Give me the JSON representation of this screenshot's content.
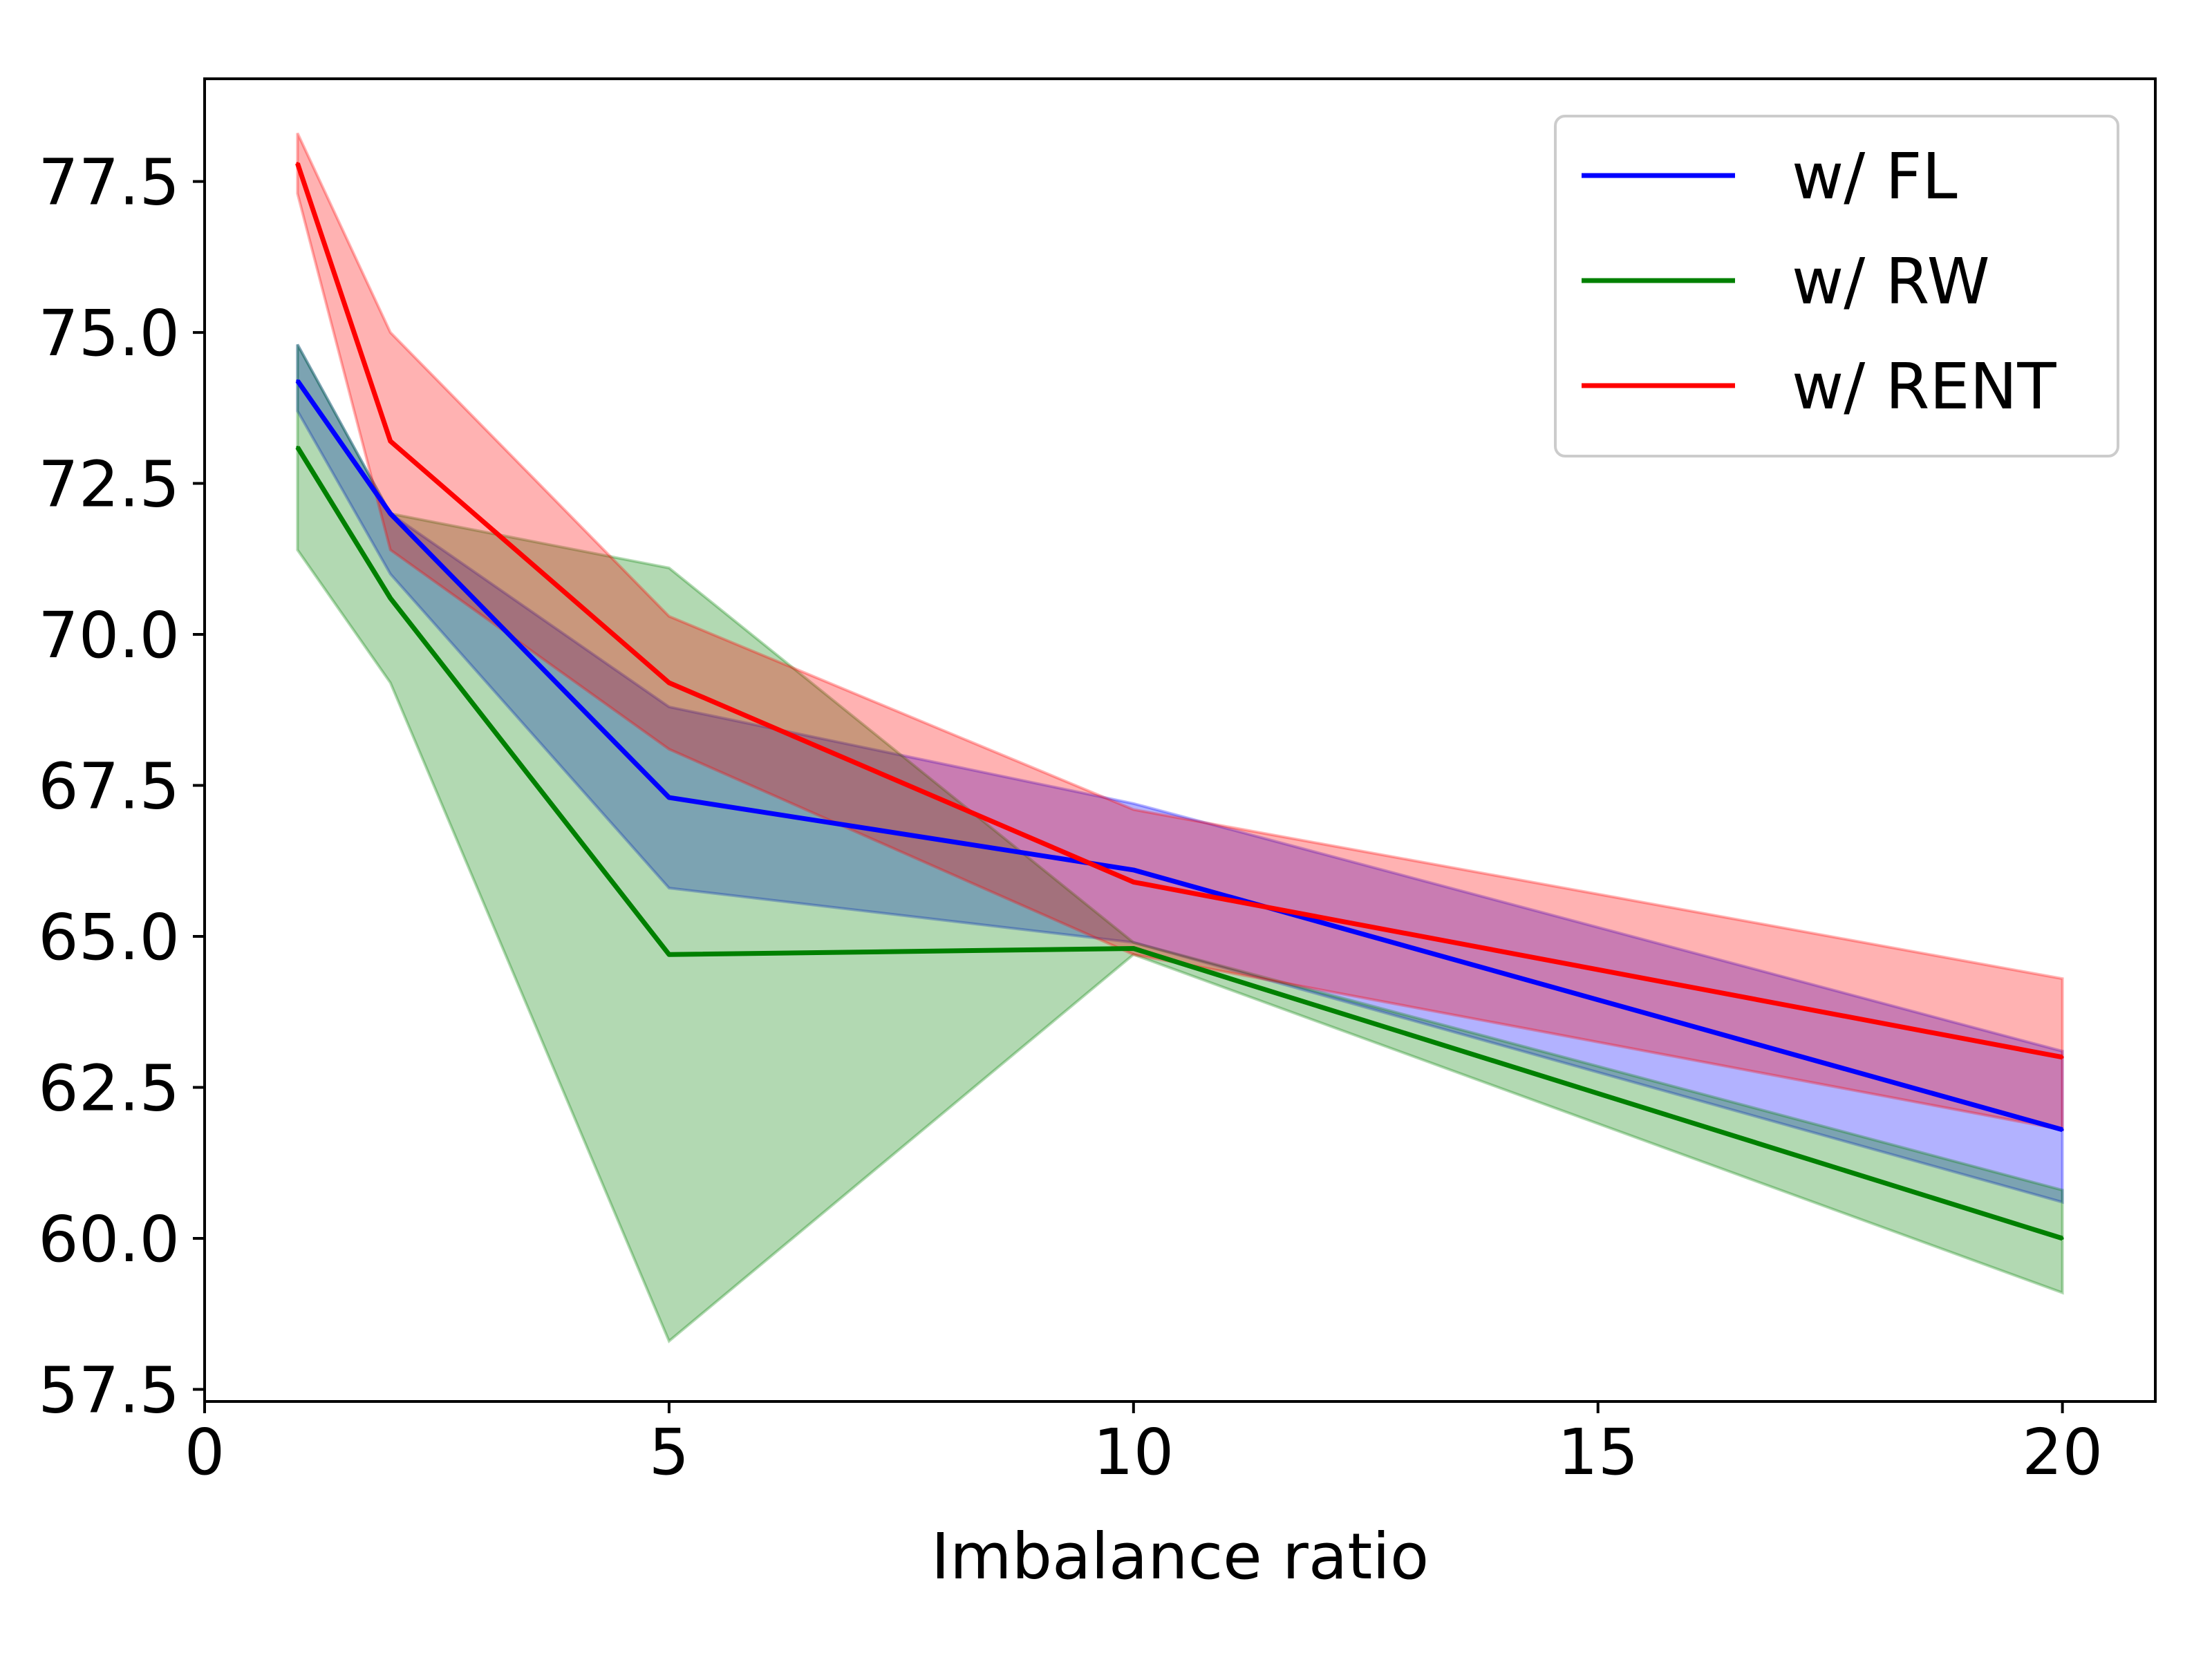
{
  "chart_data": {
    "type": "line",
    "title": "",
    "xlabel": "Imbalance ratio",
    "ylabel": "",
    "x": [
      1,
      2,
      5,
      10,
      20
    ],
    "xlim": [
      0,
      21
    ],
    "ylim": [
      57.3,
      79.2
    ],
    "xticks": [
      0,
      5,
      10,
      15,
      20
    ],
    "xtick_labels": [
      "0",
      "5",
      "10",
      "15",
      "20"
    ],
    "yticks": [
      57.5,
      60.0,
      62.5,
      65.0,
      67.5,
      70.0,
      72.5,
      75.0,
      77.5
    ],
    "ytick_labels": [
      "57.5",
      "60.0",
      "62.5",
      "65.0",
      "67.5",
      "70.0",
      "72.5",
      "75.0",
      "77.5"
    ],
    "grid": false,
    "legend_position": "top-right",
    "series": [
      {
        "name": "w/ FL",
        "color": "#0000ff",
        "values": [
          74.2,
          72.0,
          67.3,
          66.1,
          61.8
        ],
        "lower": [
          73.7,
          71.0,
          65.8,
          64.9,
          60.6
        ],
        "upper": [
          74.8,
          72.0,
          68.8,
          67.2,
          63.1
        ]
      },
      {
        "name": "w/ RW",
        "color": "#008000",
        "values": [
          73.1,
          70.6,
          64.7,
          64.8,
          60.0
        ],
        "lower": [
          71.4,
          69.2,
          58.3,
          64.7,
          59.1
        ],
        "upper": [
          74.8,
          72.0,
          71.1,
          64.9,
          60.8
        ]
      },
      {
        "name": "w/ RENT",
        "color": "#ff0000",
        "values": [
          77.8,
          73.2,
          69.2,
          65.9,
          63.0
        ],
        "lower": [
          77.3,
          71.4,
          68.1,
          64.7,
          61.8
        ],
        "upper": [
          78.3,
          75.0,
          70.3,
          67.1,
          64.3
        ]
      }
    ]
  }
}
